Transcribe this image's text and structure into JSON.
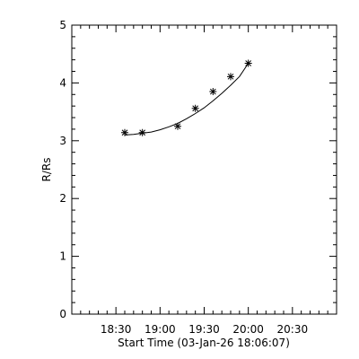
{
  "chart_data": {
    "type": "scatter",
    "xlabel": "Start Time (03-Jan-26 18:06:07)",
    "ylabel": "R/Rs",
    "x_ticks": [
      "18:30",
      "19:00",
      "19:30",
      "20:00",
      "20:30"
    ],
    "x_tick_minutes_after_18_00": [
      30,
      60,
      90,
      120,
      150
    ],
    "xlim_minutes_after_18_00": [
      0,
      180
    ],
    "ylim": [
      0,
      5
    ],
    "y_ticks": [
      0,
      1,
      2,
      3,
      4,
      5
    ],
    "grid": false,
    "series": [
      {
        "marker": "asterisk",
        "points": [
          {
            "x": "18:36",
            "y": 3.14
          },
          {
            "x": "18:48",
            "y": 3.14
          },
          {
            "x": "19:12",
            "y": 3.25
          },
          {
            "x": "19:24",
            "y": 3.56
          },
          {
            "x": "19:36",
            "y": 3.85
          },
          {
            "x": "19:48",
            "y": 4.11
          },
          {
            "x": "20:00",
            "y": 4.34
          }
        ]
      }
    ],
    "fit": {
      "x": [
        "18:36",
        "18:42",
        "18:48",
        "18:54",
        "19:00",
        "19:06",
        "19:12",
        "19:18",
        "19:24",
        "19:30",
        "19:36",
        "19:42",
        "19:48",
        "19:54",
        "20:00"
      ],
      "y": [
        3.1,
        3.11,
        3.13,
        3.15,
        3.19,
        3.24,
        3.3,
        3.38,
        3.47,
        3.57,
        3.69,
        3.82,
        3.96,
        4.11,
        4.34
      ]
    }
  }
}
